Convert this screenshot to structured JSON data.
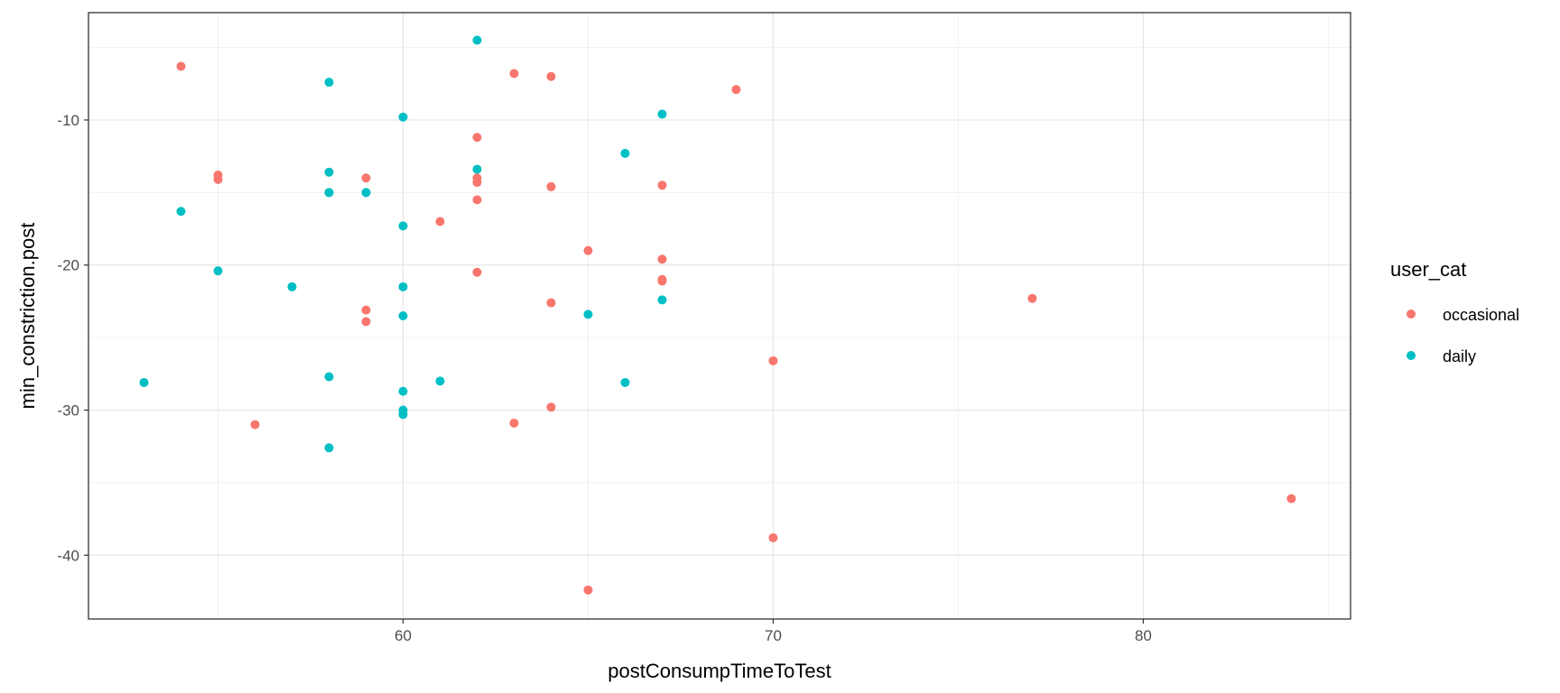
{
  "chart_data": {
    "type": "scatter",
    "title": "",
    "xlabel": "postConsumpTimeToTest",
    "ylabel": "min_constriction.post",
    "xlim": [
      51.5,
      85.6
    ],
    "ylim": [
      -44.4,
      -2.6
    ],
    "x_ticks": [
      60,
      70,
      80
    ],
    "x_minor": [
      55,
      65,
      75,
      85
    ],
    "y_ticks": [
      -10,
      -20,
      -30,
      -40
    ],
    "y_minor": [
      -5,
      -15,
      -25,
      -35
    ],
    "grid": true,
    "legend_position": "right",
    "legend": {
      "title": "user_cat",
      "entries": [
        "occasional",
        "daily"
      ]
    },
    "series": [
      {
        "name": "occasional",
        "color": "#F8766D",
        "points": [
          [
            54,
            -6.3
          ],
          [
            55,
            -13.8
          ],
          [
            55,
            -14.1
          ],
          [
            56,
            -31.0
          ],
          [
            59,
            -14.0
          ],
          [
            59,
            -23.1
          ],
          [
            59,
            -23.9
          ],
          [
            61,
            -17.0
          ],
          [
            62,
            -11.2
          ],
          [
            62,
            -14.0
          ],
          [
            62,
            -14.3
          ],
          [
            62,
            -15.5
          ],
          [
            62,
            -20.5
          ],
          [
            63,
            -6.8
          ],
          [
            63,
            -30.9
          ],
          [
            64,
            -7.0
          ],
          [
            64,
            -14.6
          ],
          [
            64,
            -22.6
          ],
          [
            64,
            -29.8
          ],
          [
            65,
            -19.0
          ],
          [
            65,
            -42.4
          ],
          [
            67,
            -14.5
          ],
          [
            67,
            -19.6
          ],
          [
            67,
            -21.0
          ],
          [
            67,
            -21.1
          ],
          [
            69,
            -7.9
          ],
          [
            70,
            -26.6
          ],
          [
            70,
            -38.8
          ],
          [
            77,
            -22.3
          ],
          [
            84,
            -36.1
          ]
        ]
      },
      {
        "name": "daily",
        "color": "#00BFC4",
        "points": [
          [
            53,
            -28.1
          ],
          [
            54,
            -16.3
          ],
          [
            55,
            -20.4
          ],
          [
            57,
            -21.5
          ],
          [
            58,
            -7.4
          ],
          [
            58,
            -13.6
          ],
          [
            58,
            -15.0
          ],
          [
            58,
            -15.0
          ],
          [
            58,
            -27.7
          ],
          [
            58,
            -32.6
          ],
          [
            59,
            -15.0
          ],
          [
            59,
            -15.0
          ],
          [
            60,
            -9.8
          ],
          [
            60,
            -17.3
          ],
          [
            60,
            -21.5
          ],
          [
            60,
            -23.5
          ],
          [
            60,
            -28.7
          ],
          [
            60,
            -30.0
          ],
          [
            60,
            -30.3
          ],
          [
            61,
            -28.0
          ],
          [
            62,
            -4.5
          ],
          [
            62,
            -13.4
          ],
          [
            65,
            -23.4
          ],
          [
            66,
            -12.3
          ],
          [
            66,
            -28.1
          ],
          [
            67,
            -9.6
          ],
          [
            67,
            -22.4
          ]
        ]
      }
    ]
  }
}
